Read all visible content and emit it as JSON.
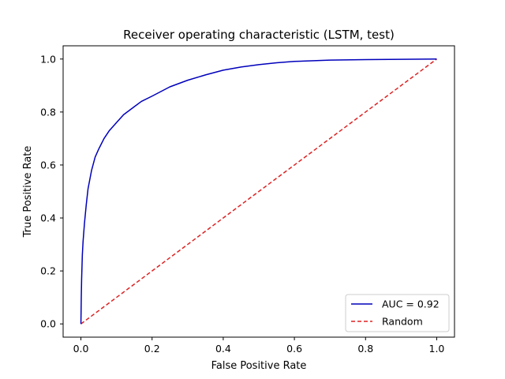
{
  "chart_data": {
    "type": "line",
    "title": "Receiver operating characteristic (LSTM, test)",
    "xlabel": "False Positive Rate",
    "ylabel": "True Positive Rate",
    "xlim": [
      -0.05,
      1.05
    ],
    "ylim": [
      -0.05,
      1.05
    ],
    "xticks": [
      0.0,
      0.2,
      0.4,
      0.6,
      0.8,
      1.0
    ],
    "yticks": [
      0.0,
      0.2,
      0.4,
      0.6,
      0.8,
      1.0
    ],
    "xtick_labels": [
      "0.0",
      "0.2",
      "0.4",
      "0.6",
      "0.8",
      "1.0"
    ],
    "ytick_labels": [
      "0.0",
      "0.2",
      "0.4",
      "0.6",
      "0.8",
      "1.0"
    ],
    "grid": false,
    "legend_position": "bottom-right",
    "series": [
      {
        "name": "AUC = 0.92",
        "color": "#0000bb",
        "line_style": "solid",
        "x": [
          0.0,
          0.001,
          0.002,
          0.004,
          0.006,
          0.01,
          0.015,
          0.02,
          0.03,
          0.04,
          0.05,
          0.065,
          0.08,
          0.1,
          0.12,
          0.15,
          0.17,
          0.2,
          0.25,
          0.3,
          0.35,
          0.4,
          0.45,
          0.5,
          0.55,
          0.6,
          0.7,
          0.8,
          0.9,
          1.0
        ],
        "y": [
          0.0,
          0.1,
          0.17,
          0.26,
          0.31,
          0.38,
          0.45,
          0.51,
          0.58,
          0.63,
          0.66,
          0.7,
          0.73,
          0.76,
          0.79,
          0.82,
          0.84,
          0.86,
          0.895,
          0.92,
          0.94,
          0.958,
          0.97,
          0.979,
          0.986,
          0.991,
          0.996,
          0.998,
          0.999,
          1.0
        ]
      },
      {
        "name": "Random",
        "color": "#dd2222",
        "line_style": "dashed",
        "x": [
          0.0,
          1.0
        ],
        "y": [
          0.0,
          1.0
        ]
      }
    ]
  }
}
